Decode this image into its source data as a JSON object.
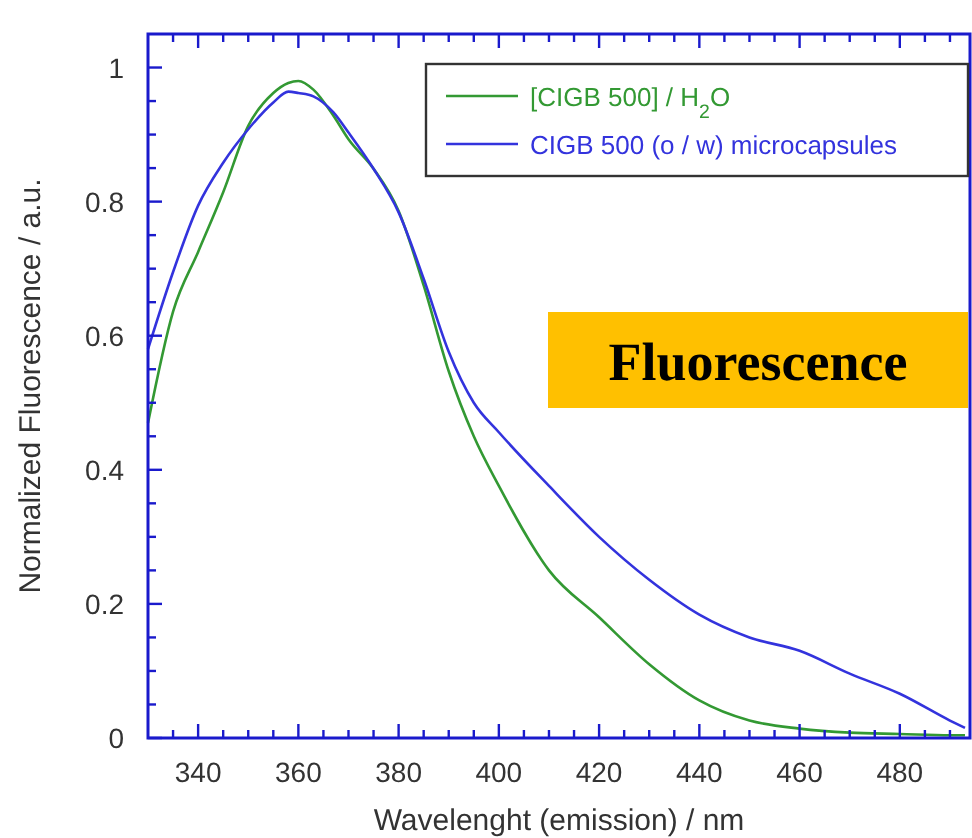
{
  "chart_data": {
    "type": "line",
    "xlabel": "Wavelenght (emission) / nm",
    "ylabel": "Normalized Fluorescence / a.u.",
    "annotations": [
      "Fluorescence"
    ],
    "xlim": [
      330,
      494
    ],
    "ylim": [
      0,
      1.05
    ],
    "xticks": [
      {
        "value": 335,
        "label": null
      },
      340,
      {
        "value": 345,
        "label": null
      },
      {
        "value": 350,
        "label": null
      },
      {
        "value": 355,
        "label": null
      },
      360,
      {
        "value": 365,
        "label": null
      },
      {
        "value": 370,
        "label": null
      },
      {
        "value": 375,
        "label": null
      },
      380,
      {
        "value": 385,
        "label": null
      },
      {
        "value": 390,
        "label": null
      },
      {
        "value": 395,
        "label": null
      },
      400,
      {
        "value": 405,
        "label": null
      },
      {
        "value": 410,
        "label": null
      },
      {
        "value": 415,
        "label": null
      },
      420,
      {
        "value": 425,
        "label": null
      },
      {
        "value": 430,
        "label": null
      },
      {
        "value": 435,
        "label": null
      },
      440,
      {
        "value": 445,
        "label": null
      },
      {
        "value": 450,
        "label": null
      },
      {
        "value": 455,
        "label": null
      },
      460,
      {
        "value": 465,
        "label": null
      },
      {
        "value": 470,
        "label": null
      },
      {
        "value": 475,
        "label": null
      },
      480,
      {
        "value": 485,
        "label": null
      },
      {
        "value": 490,
        "label": null
      }
    ],
    "yticks": [
      0,
      {
        "value": 0.05,
        "label": null
      },
      {
        "value": 0.1,
        "label": null
      },
      {
        "value": 0.15,
        "label": null
      },
      0.2,
      {
        "value": 0.25,
        "label": null
      },
      {
        "value": 0.3,
        "label": null
      },
      {
        "value": 0.35,
        "label": null
      },
      0.4,
      {
        "value": 0.45,
        "label": null
      },
      {
        "value": 0.5,
        "label": null
      },
      {
        "value": 0.55,
        "label": null
      },
      0.6,
      {
        "value": 0.65,
        "label": null
      },
      {
        "value": 0.7,
        "label": null
      },
      {
        "value": 0.75,
        "label": null
      },
      0.8,
      {
        "value": 0.85,
        "label": null
      },
      {
        "value": 0.9,
        "label": null
      },
      {
        "value": 0.95,
        "label": null
      },
      1
    ],
    "grid": false,
    "legend": "top right",
    "marker": "none",
    "line_style": "solid",
    "x": [
      330,
      335,
      340,
      345,
      350,
      355,
      358,
      360,
      363,
      367,
      370,
      375,
      380,
      385,
      390,
      395,
      400,
      410,
      420,
      430,
      440,
      450,
      460,
      470,
      480,
      490,
      493
    ],
    "series": [
      {
        "name": "[CIGB 500] / H$_{2}$O",
        "color": "#339933",
        "values": [
          0.47,
          0.636,
          0.725,
          0.814,
          0.913,
          0.962,
          0.977,
          0.98,
          0.967,
          0.928,
          0.893,
          0.849,
          0.786,
          0.675,
          0.547,
          0.45,
          0.376,
          0.25,
          0.18,
          0.11,
          0.056,
          0.026,
          0.014,
          0.008,
          0.006,
          0.004,
          0.004
        ]
      },
      {
        "name": "CIGB 500 (o / w) microcapsules",
        "color": "#3333dd",
        "values": [
          0.58,
          0.695,
          0.794,
          0.858,
          0.908,
          0.948,
          0.964,
          0.962,
          0.957,
          0.933,
          0.903,
          0.849,
          0.784,
          0.685,
          0.576,
          0.5,
          0.456,
          0.376,
          0.3,
          0.236,
          0.184,
          0.15,
          0.13,
          0.096,
          0.066,
          0.026,
          0.015
        ]
      }
    ]
  }
}
